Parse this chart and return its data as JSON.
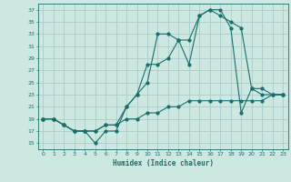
{
  "title": "",
  "xlabel": "Humidex (Indice chaleur)",
  "bg_color": "#cce8e0",
  "grid_color": "#aacccc",
  "line_color": "#1a6e6e",
  "xlim": [
    -0.5,
    23.5
  ],
  "ylim": [
    14,
    38
  ],
  "xticks": [
    0,
    1,
    2,
    3,
    4,
    5,
    6,
    7,
    8,
    9,
    10,
    11,
    12,
    13,
    14,
    15,
    16,
    17,
    18,
    19,
    20,
    21,
    22,
    23
  ],
  "yticks": [
    15,
    17,
    19,
    21,
    23,
    25,
    27,
    29,
    31,
    33,
    35,
    37
  ],
  "series1_x": [
    0,
    1,
    2,
    3,
    4,
    5,
    6,
    7,
    8,
    9,
    10,
    11,
    12,
    13,
    14,
    15,
    16,
    17,
    18,
    19,
    20,
    21,
    22,
    23
  ],
  "series1_y": [
    19,
    19,
    18,
    17,
    17,
    15,
    17,
    17,
    21,
    23,
    25,
    33,
    33,
    32,
    28,
    36,
    37,
    36,
    35,
    34,
    24,
    23,
    23,
    23
  ],
  "series2_x": [
    0,
    1,
    2,
    3,
    4,
    5,
    6,
    7,
    8,
    9,
    10,
    11,
    12,
    13,
    14,
    15,
    16,
    17,
    18,
    19,
    20,
    21,
    22,
    23
  ],
  "series2_y": [
    19,
    19,
    18,
    17,
    17,
    17,
    18,
    18,
    21,
    23,
    28,
    28,
    29,
    32,
    32,
    36,
    37,
    37,
    34,
    20,
    24,
    24,
    23,
    23
  ],
  "series3_x": [
    0,
    1,
    2,
    3,
    4,
    5,
    6,
    7,
    8,
    9,
    10,
    11,
    12,
    13,
    14,
    15,
    16,
    17,
    18,
    19,
    20,
    21,
    22,
    23
  ],
  "series3_y": [
    19,
    19,
    18,
    17,
    17,
    17,
    18,
    18,
    19,
    19,
    20,
    20,
    21,
    21,
    22,
    22,
    22,
    22,
    22,
    22,
    22,
    22,
    23,
    23
  ]
}
